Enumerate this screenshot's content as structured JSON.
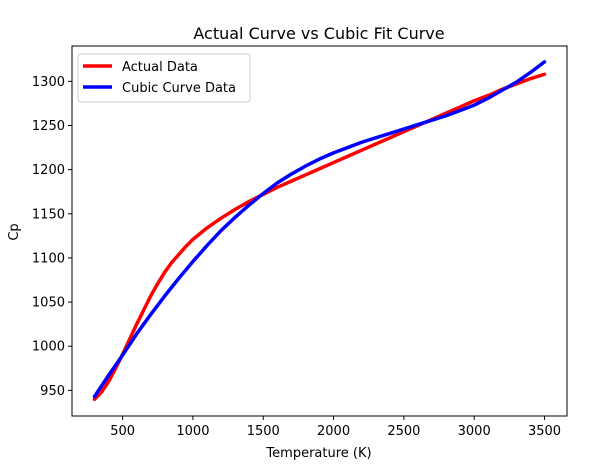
{
  "chart_data": {
    "type": "line",
    "title": "Actual Curve vs Cubic Fit Curve",
    "xlabel": "Temperature (K)",
    "ylabel": "Cp",
    "xlim": [
      140,
      3660
    ],
    "ylim": [
      921,
      1340
    ],
    "xticks": [
      500,
      1000,
      1500,
      2000,
      2500,
      3000,
      3500
    ],
    "yticks": [
      950,
      1000,
      1050,
      1100,
      1150,
      1200,
      1250,
      1300
    ],
    "grid": false,
    "legend_position": "top-left",
    "series": [
      {
        "name": "Actual Data",
        "color": "#ff0000",
        "x": [
          300,
          350,
          400,
          450,
          500,
          550,
          600,
          650,
          700,
          750,
          800,
          850,
          900,
          950,
          1000,
          1100,
          1200,
          1300,
          1400,
          1500,
          1600,
          1700,
          1800,
          1900,
          2000,
          2100,
          2200,
          2300,
          2400,
          2500,
          2600,
          2700,
          2800,
          2900,
          3000,
          3100,
          3200,
          3300,
          3400,
          3500
        ],
        "values": [
          940,
          948,
          960,
          975,
          991,
          1008,
          1025,
          1041,
          1057,
          1071,
          1084,
          1095,
          1104,
          1113,
          1121,
          1134,
          1145,
          1155,
          1164,
          1172,
          1180,
          1187,
          1194,
          1201,
          1208,
          1215,
          1222,
          1229,
          1236,
          1243,
          1250,
          1257,
          1264,
          1271,
          1278,
          1284,
          1291,
          1297,
          1303,
          1308
        ]
      },
      {
        "name": "Cubic Curve Data",
        "color": "#0000ff",
        "x": [
          300,
          400,
          500,
          600,
          700,
          800,
          900,
          1000,
          1100,
          1200,
          1300,
          1400,
          1500,
          1600,
          1700,
          1800,
          1900,
          2000,
          2100,
          2200,
          2300,
          2400,
          2500,
          2600,
          2700,
          2800,
          2900,
          3000,
          3100,
          3200,
          3300,
          3400,
          3500
        ],
        "values": [
          943,
          967,
          990,
          1014,
          1036,
          1057,
          1077,
          1096,
          1114,
          1131,
          1146,
          1160,
          1173,
          1185,
          1195,
          1204,
          1212,
          1219,
          1225,
          1231,
          1236,
          1241,
          1246,
          1251,
          1256,
          1261,
          1267,
          1273,
          1281,
          1290,
          1299,
          1310,
          1322
        ]
      }
    ]
  }
}
